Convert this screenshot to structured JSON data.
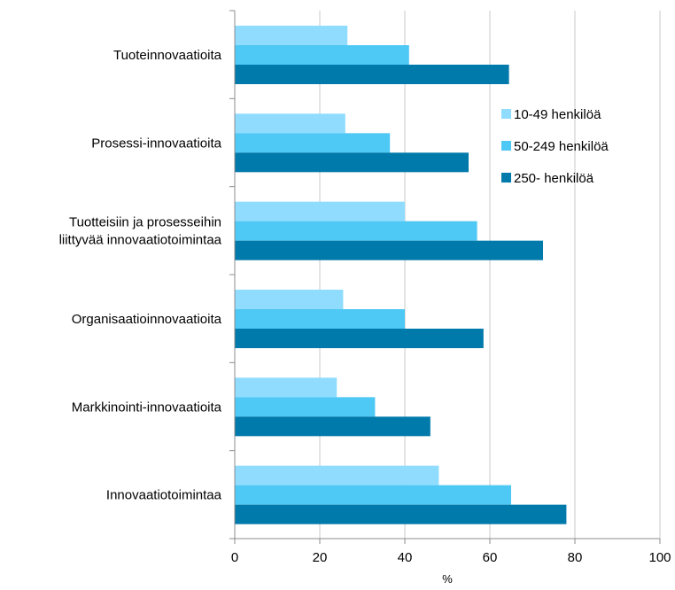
{
  "chart_data": {
    "type": "bar",
    "orientation": "horizontal",
    "categories": [
      [
        "Tuoteinnovaatioita"
      ],
      [
        "Prosessi-innovaatioita"
      ],
      [
        "Tuotteisiin ja prosesseihin",
        "liittyvää innovaatiotoimintaa"
      ],
      [
        "Organisaatioinnovaatioita"
      ],
      [
        "Markkinointi-innovaatioita"
      ],
      [
        "Innovaatiotoimintaa"
      ]
    ],
    "series": [
      {
        "name": "10-49 henkilöä",
        "color": "#8fdcff",
        "values": [
          26.5,
          26,
          40,
          25.5,
          24,
          48
        ]
      },
      {
        "name": "50-249 henkilöä",
        "color": "#4ec8f4",
        "values": [
          41,
          36.5,
          57,
          40,
          33,
          65
        ]
      },
      {
        "name": "250- henkilöä",
        "color": "#0079ab",
        "values": [
          64.5,
          55,
          72.5,
          58.5,
          46,
          78
        ]
      }
    ],
    "xlim": [
      0,
      100
    ],
    "xticks": [
      "0",
      "20",
      "40",
      "60",
      "80",
      "100"
    ],
    "xlabel": "%",
    "grid": true,
    "legend_position": "right"
  }
}
